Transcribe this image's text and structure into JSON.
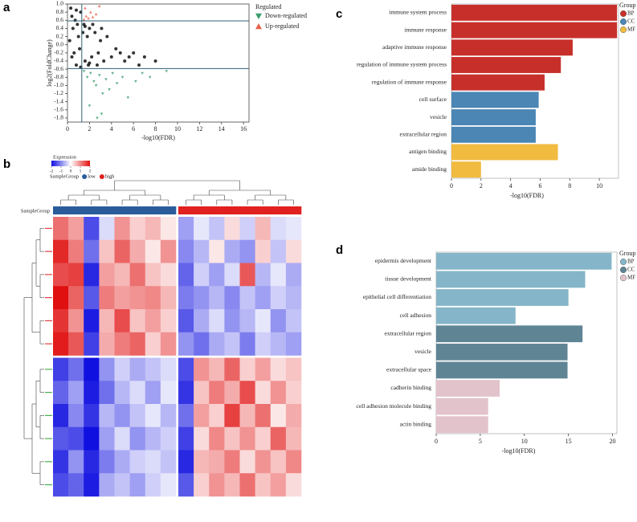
{
  "chart_data": [
    {
      "type": "scatter",
      "panel": "a",
      "x_label": "-log10(FDR)",
      "y_label": "log2(FoldChange)",
      "legend_title": "Regulated",
      "xlim": [
        0,
        16.5
      ],
      "ylim": [
        -1.9,
        1.0
      ],
      "xticks": [
        0,
        2,
        4,
        6,
        8,
        10,
        12,
        14,
        16
      ],
      "yticks": [
        {
          "value": 1,
          "label": "1.0"
        },
        0.8,
        0.6,
        0.4,
        0.2,
        {
          "value": 0,
          "label": "0.0"
        },
        -0.2,
        -0.4,
        -0.6,
        -0.8,
        {
          "value": -1,
          "label": "-1.0"
        },
        -1.2,
        -1.4,
        -1.6,
        -1.8
      ],
      "hlines": [
        0.585,
        -0.585
      ],
      "vlines": [
        1.3
      ],
      "line_color": "#2f5f7a",
      "series": [
        {
          "color": "#111111",
          "marker": "circle",
          "x": [
            0.2,
            0.4,
            0.5,
            0.7,
            0.8,
            1.0,
            1.1,
            1.2,
            0.3,
            0.6,
            0.9,
            1.4,
            1.6,
            1.8,
            2.0,
            2.2,
            2.5,
            2.8,
            3.0,
            3.3,
            3.6,
            4.0,
            4.4,
            4.8,
            5.2,
            5.6,
            6.0,
            6.5,
            7.0,
            8.0,
            1.5,
            1.9,
            2.3,
            2.7,
            3.1,
            0.4,
            0.8,
            1.2,
            1.6,
            2.0
          ],
          "values": [
            0.1,
            -0.3,
            0.4,
            0.6,
            -0.5,
            0.2,
            -0.1,
            0.8,
            0.9,
            -0.2,
            0.5,
            0.3,
            -0.4,
            0.2,
            0.4,
            -0.3,
            0.3,
            -0.2,
            0.1,
            -0.4,
            0.2,
            -0.3,
            -0.1,
            -0.2,
            -0.4,
            -0.3,
            -0.2,
            -0.5,
            -0.3,
            -0.4,
            0.5,
            -0.5,
            0.5,
            -0.5,
            0.4,
            0.7,
            0.85,
            -0.55,
            0.45,
            -0.45
          ]
        },
        {
          "name": "Down-regulated",
          "color": "#3a9c6c",
          "marker": "triangle-down",
          "x": [
            1.5,
            1.8,
            2.1,
            2.4,
            2.6,
            2.9,
            3.2,
            3.5,
            3.8,
            4.1,
            4.5,
            5.0,
            5.5,
            6.2,
            6.8,
            7.5,
            9.0,
            2.0,
            2.7,
            3.1
          ],
          "values": [
            -0.65,
            -0.8,
            -0.7,
            -0.9,
            -1.0,
            -0.75,
            -1.2,
            -0.85,
            -1.1,
            -0.7,
            -0.95,
            -0.8,
            -1.3,
            -0.9,
            -0.7,
            -0.8,
            -0.65,
            -1.5,
            -1.8,
            -1.7
          ]
        },
        {
          "name": "Up-regulated",
          "color": "#e8604a",
          "marker": "triangle-up",
          "x": [
            1.5,
            1.7,
            1.9,
            2.1,
            2.3,
            2.6,
            2.9,
            1.6
          ],
          "values": [
            0.62,
            0.7,
            0.65,
            0.8,
            0.68,
            0.75,
            0.95,
            0.9
          ]
        }
      ]
    },
    {
      "type": "heatmap",
      "panel": "b",
      "legend_title": "Expression",
      "zlim": [
        -2,
        2
      ],
      "zticks": [
        -2,
        -1,
        0,
        1,
        2
      ],
      "color_scale": [
        "#1010e0",
        "#ffffff",
        "#e01010"
      ],
      "sample_group_title": "SampleGroup",
      "sample_groups": [
        {
          "name": "low",
          "color": "#2a5c9a"
        },
        {
          "name": "high",
          "color": "#e0211f"
        }
      ],
      "column_groups": [
        0,
        0,
        0,
        0,
        0,
        0,
        0,
        0,
        1,
        1,
        1,
        1,
        1,
        1,
        1,
        1
      ],
      "row_groups": [
        0,
        0,
        0,
        0,
        0,
        0,
        1,
        1,
        1,
        1,
        1,
        1
      ],
      "row_group_colors": [
        "#e04040",
        "#4caf50"
      ],
      "values": [
        [
          1.2,
          0.8,
          -1.5,
          -0.3,
          0.9,
          0.4,
          0.6,
          0.2,
          -0.8,
          -0.2,
          -0.5,
          0.3,
          -0.4,
          0.6,
          -0.3,
          -0.2
        ],
        [
          1.8,
          1.1,
          -1.2,
          0.5,
          1.3,
          0.7,
          0.2,
          0.9,
          -1.0,
          -0.6,
          0.2,
          -0.7,
          -0.9,
          0.4,
          -0.5,
          0.3
        ],
        [
          1.5,
          1.6,
          -1.8,
          0.8,
          0.6,
          1.2,
          0.5,
          0.3,
          -1.3,
          -0.4,
          -0.8,
          -0.3,
          1.4,
          -0.6,
          -0.2,
          -0.7
        ],
        [
          2.0,
          1.3,
          -1.4,
          1.1,
          0.8,
          0.9,
          1.0,
          0.6,
          -1.1,
          -0.9,
          -0.6,
          -1.0,
          -0.5,
          -0.8,
          -0.4,
          -0.6
        ],
        [
          1.7,
          0.9,
          -1.9,
          0.6,
          1.5,
          0.5,
          0.8,
          0.4,
          -1.4,
          -0.7,
          -0.3,
          -0.9,
          -0.6,
          -0.2,
          -0.9,
          -0.5
        ],
        [
          1.9,
          1.4,
          -1.6,
          0.7,
          1.1,
          1.3,
          0.4,
          0.9,
          -0.9,
          -1.2,
          -0.7,
          -0.5,
          -1.1,
          -0.4,
          -0.6,
          -0.8
        ],
        [
          -1.6,
          -1.2,
          -2.0,
          -0.9,
          -0.4,
          -0.7,
          -0.5,
          -0.3,
          -1.5,
          0.9,
          0.6,
          1.3,
          0.4,
          0.8,
          0.3,
          0.5
        ],
        [
          -1.3,
          -0.8,
          -1.9,
          -1.2,
          -0.6,
          -0.3,
          -0.8,
          -0.2,
          -1.7,
          0.5,
          1.1,
          0.7,
          1.5,
          0.3,
          0.9,
          0.4
        ],
        [
          -1.8,
          -1.0,
          -1.7,
          -0.6,
          -0.9,
          -0.5,
          -0.2,
          -0.6,
          -1.2,
          0.8,
          0.4,
          1.6,
          0.6,
          1.2,
          0.2,
          0.7
        ],
        [
          -1.4,
          -1.5,
          -2.0,
          -0.8,
          -0.3,
          -0.9,
          -0.6,
          -0.4,
          -1.6,
          0.3,
          1.0,
          0.5,
          0.9,
          0.4,
          1.3,
          0.6
        ],
        [
          -1.7,
          -0.9,
          -1.8,
          -1.1,
          -0.7,
          -0.4,
          -0.3,
          -0.5,
          -1.8,
          0.6,
          0.7,
          1.1,
          0.3,
          0.9,
          0.5,
          1.0
        ],
        [
          -1.5,
          -1.3,
          -1.9,
          -0.7,
          -0.5,
          -0.8,
          -0.4,
          -0.2,
          -1.4,
          0.4,
          0.9,
          0.6,
          1.2,
          0.5,
          0.8,
          0.3
        ]
      ]
    },
    {
      "type": "hbar",
      "panel": "c",
      "x_label": "-log10(FDR)",
      "legend_title": "Group",
      "xlim": [
        0,
        11.3
      ],
      "xticks": [
        0,
        2,
        4,
        6,
        8,
        10
      ],
      "series": [
        {
          "name": "BP",
          "color": "#c7302a",
          "categories": [
            "immune system process",
            "immune response",
            "adaptive immune response",
            "regulation of immune system process",
            "regulation of immune response"
          ],
          "values": [
            11.2,
            11.2,
            8.2,
            7.4,
            6.3
          ]
        },
        {
          "name": "CC",
          "color": "#4b86b4",
          "categories": [
            "cell surface",
            "vesicle",
            "extracellular region"
          ],
          "values": [
            5.9,
            5.7,
            5.7
          ]
        },
        {
          "name": "MF",
          "color": "#f0bb3f",
          "categories": [
            "antigen binding",
            "amide binding"
          ],
          "values": [
            7.2,
            2.0
          ]
        }
      ]
    },
    {
      "type": "hbar",
      "panel": "d",
      "x_label": "-log10(FDR)",
      "legend_title": "Group",
      "xlim": [
        0,
        20.5
      ],
      "xticks": [
        0,
        5,
        10,
        15,
        20
      ],
      "series": [
        {
          "name": "BP",
          "color": "#85b5c8",
          "categories": [
            "epidermis development",
            "tissue development",
            "epithelial cell differentiation",
            "cell adhesion"
          ],
          "values": [
            19.9,
            16.9,
            15.0,
            9.0
          ]
        },
        {
          "name": "CC",
          "color": "#5f8595",
          "categories": [
            "extracellular region",
            "vesicle",
            "extracellular space"
          ],
          "values": [
            16.6,
            14.9,
            14.9
          ]
        },
        {
          "name": "MF",
          "color": "#e3c3cb",
          "categories": [
            "cadherin binding",
            "cell adhesion molecule binding",
            "actin binding"
          ],
          "values": [
            7.2,
            5.9,
            5.9
          ]
        }
      ]
    }
  ]
}
